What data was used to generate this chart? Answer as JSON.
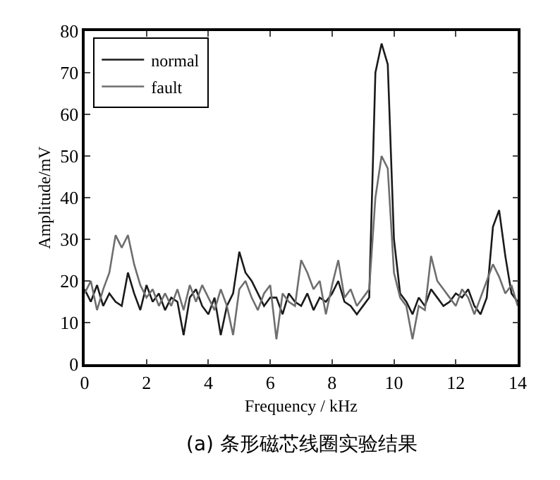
{
  "chart_data": {
    "type": "line",
    "title": "(a) 条形磁芯线圈实验结果",
    "xlabel": "Frequency / kHz",
    "ylabel": "Amplitude/mV",
    "x": [
      0,
      0.2,
      0.4,
      0.6,
      0.8,
      1.0,
      1.2,
      1.4,
      1.6,
      1.8,
      2.0,
      2.2,
      2.4,
      2.6,
      2.8,
      3.0,
      3.2,
      3.4,
      3.6,
      3.8,
      4.0,
      4.2,
      4.4,
      4.6,
      4.8,
      5.0,
      5.2,
      5.4,
      5.6,
      5.8,
      6.0,
      6.2,
      6.4,
      6.6,
      6.8,
      7.0,
      7.2,
      7.4,
      7.6,
      7.8,
      8.0,
      8.2,
      8.4,
      8.6,
      8.8,
      9.0,
      9.2,
      9.4,
      9.6,
      9.8,
      10.0,
      10.2,
      10.4,
      10.6,
      10.8,
      11.0,
      11.2,
      11.4,
      11.6,
      11.8,
      12.0,
      12.2,
      12.4,
      12.6,
      12.8,
      13.0,
      13.2,
      13.4,
      13.6,
      13.8,
      14.0
    ],
    "series": [
      {
        "name": "normal",
        "color": "#1a1a1a",
        "values": [
          18,
          15,
          19,
          14,
          17,
          15,
          14,
          22,
          17,
          13,
          19,
          15,
          17,
          13,
          16,
          15,
          7,
          16,
          18,
          14,
          12,
          16,
          7,
          14,
          17,
          27,
          22,
          20,
          17,
          14,
          16,
          16,
          12,
          17,
          15,
          14,
          17,
          13,
          16,
          15,
          17,
          20,
          15,
          14,
          12,
          14,
          16,
          70,
          77,
          72,
          30,
          17,
          15,
          12,
          16,
          14,
          18,
          16,
          14,
          15,
          17,
          16,
          18,
          14,
          12,
          16,
          33,
          37,
          26,
          17,
          15
        ]
      },
      {
        "name": "fault",
        "color": "#6e6e6e",
        "values": [
          17,
          20,
          13,
          18,
          22,
          31,
          28,
          31,
          24,
          19,
          16,
          18,
          14,
          17,
          14,
          18,
          13,
          19,
          15,
          19,
          16,
          13,
          18,
          14,
          7,
          18,
          20,
          16,
          13,
          17,
          19,
          6,
          17,
          15,
          14,
          25,
          22,
          18,
          20,
          12,
          19,
          25,
          16,
          18,
          14,
          16,
          18,
          40,
          50,
          47,
          22,
          16,
          14,
          6,
          14,
          13,
          26,
          20,
          18,
          16,
          14,
          18,
          16,
          12,
          16,
          20,
          24,
          21,
          17,
          19,
          14
        ]
      }
    ],
    "xlim": [
      0,
      14
    ],
    "xticks": [
      0,
      2,
      4,
      6,
      8,
      10,
      12,
      14
    ],
    "ylim": [
      0,
      80
    ],
    "yticks": [
      0,
      10,
      20,
      30,
      40,
      50,
      60,
      70,
      80
    ],
    "legend": "top left",
    "line_style": "solid"
  }
}
